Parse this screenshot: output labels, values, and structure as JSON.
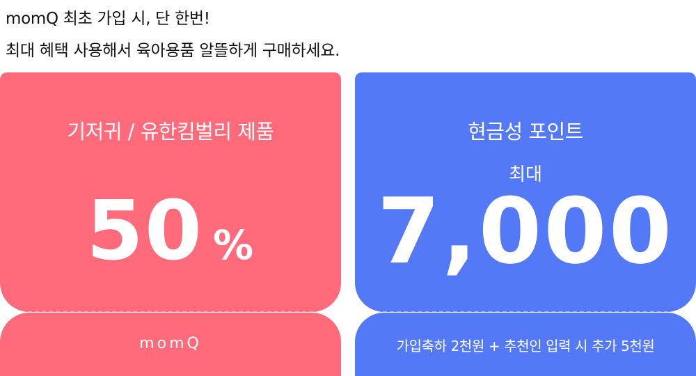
{
  "intro": {
    "line1": "momQ 최초 가입 시, 단 한번!",
    "line2": "최대 혜택 사용해서 육아용품 알뜰하게 구매하세요."
  },
  "coupons": [
    {
      "title": "기저귀 / 유한킴벌리 제품",
      "value": "50",
      "unit": "%",
      "footer": "momQ",
      "color": "#ff6b7a"
    },
    {
      "title": "현금성 포인트",
      "sublabel": "최대",
      "value": "7,000",
      "footer": "가입축하 2천원 + 추천인 입력 시 추가 5천원",
      "color": "#5479f7"
    }
  ]
}
